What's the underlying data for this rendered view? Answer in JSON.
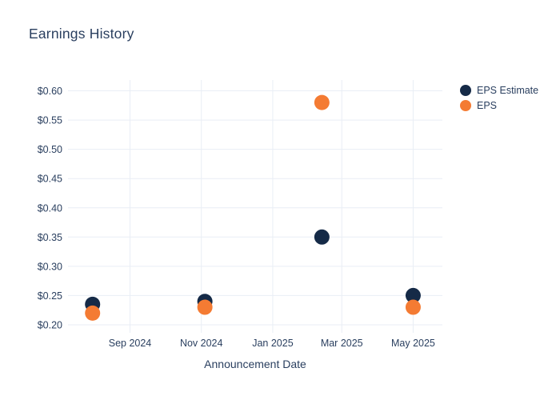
{
  "chart_data": {
    "type": "scatter",
    "title": "Earnings History",
    "xlabel": "Announcement Date",
    "ylabel": "",
    "grid": true,
    "legend_position": "right-top",
    "background_color": "#ffffff",
    "grid_color": "#e9eef5",
    "text_color": "#2a3f5f",
    "x_range": [
      "2024-07-10",
      "2025-05-26"
    ],
    "x_ticks": [
      {
        "date": "2024-09-01",
        "label": "Sep 2024"
      },
      {
        "date": "2024-11-01",
        "label": "Nov 2024"
      },
      {
        "date": "2025-01-01",
        "label": "Jan 2025"
      },
      {
        "date": "2025-03-01",
        "label": "Mar 2025"
      },
      {
        "date": "2025-05-01",
        "label": "May 2025"
      }
    ],
    "y_range": [
      0.1863,
      0.6185
    ],
    "y_ticks": [
      {
        "value": 0.2,
        "label": "$0.20"
      },
      {
        "value": 0.25,
        "label": "$0.25"
      },
      {
        "value": 0.3,
        "label": "$0.30"
      },
      {
        "value": 0.35,
        "label": "$0.35"
      },
      {
        "value": 0.4,
        "label": "$0.40"
      },
      {
        "value": 0.45,
        "label": "$0.45"
      },
      {
        "value": 0.5,
        "label": "$0.50"
      },
      {
        "value": 0.55,
        "label": "$0.55"
      },
      {
        "value": 0.6,
        "label": "$0.60"
      }
    ],
    "series": [
      {
        "name": "EPS Estimate",
        "color": "#152a47",
        "points": [
          {
            "date": "2024-07-31",
            "value": 0.235
          },
          {
            "date": "2024-11-04",
            "value": 0.24
          },
          {
            "date": "2025-02-12",
            "value": 0.35
          },
          {
            "date": "2025-05-01",
            "value": 0.25
          }
        ]
      },
      {
        "name": "EPS",
        "color": "#f47b33",
        "points": [
          {
            "date": "2024-07-31",
            "value": 0.22
          },
          {
            "date": "2024-11-04",
            "value": 0.23
          },
          {
            "date": "2025-02-12",
            "value": 0.58
          },
          {
            "date": "2025-05-01",
            "value": 0.23
          }
        ]
      }
    ]
  }
}
